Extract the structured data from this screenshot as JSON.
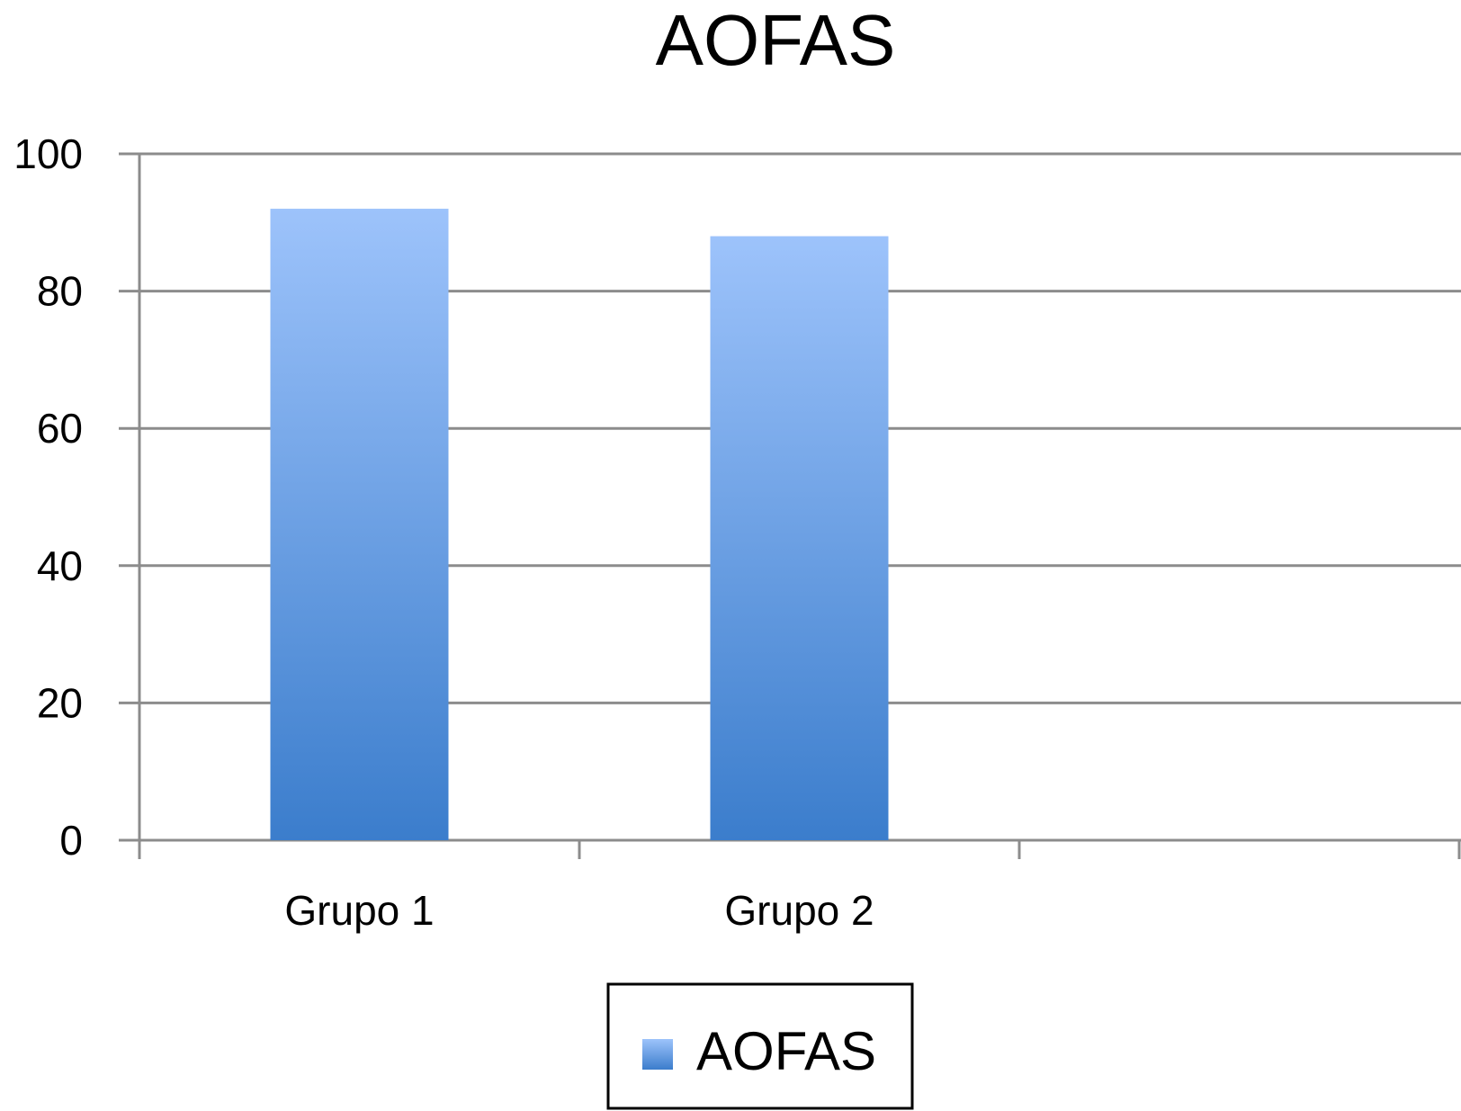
{
  "chart_data": {
    "type": "bar",
    "title": "AOFAS",
    "xlabel": "",
    "ylabel": "",
    "categories": [
      "Grupo 1",
      "Grupo 2",
      ""
    ],
    "series": [
      {
        "name": "AOFAS",
        "values": [
          92,
          88,
          null
        ]
      }
    ],
    "ylim": [
      0,
      100
    ],
    "yticks": [
      "0",
      "20",
      "40",
      "60",
      "80",
      "100"
    ],
    "grid": true,
    "legend": "bottom-center",
    "colors": {
      "bar_top": "#9DC3FB",
      "bar_bottom": "#3B7DCC",
      "grid": "#8C8C8C",
      "axis": "#8C8C8C"
    }
  }
}
